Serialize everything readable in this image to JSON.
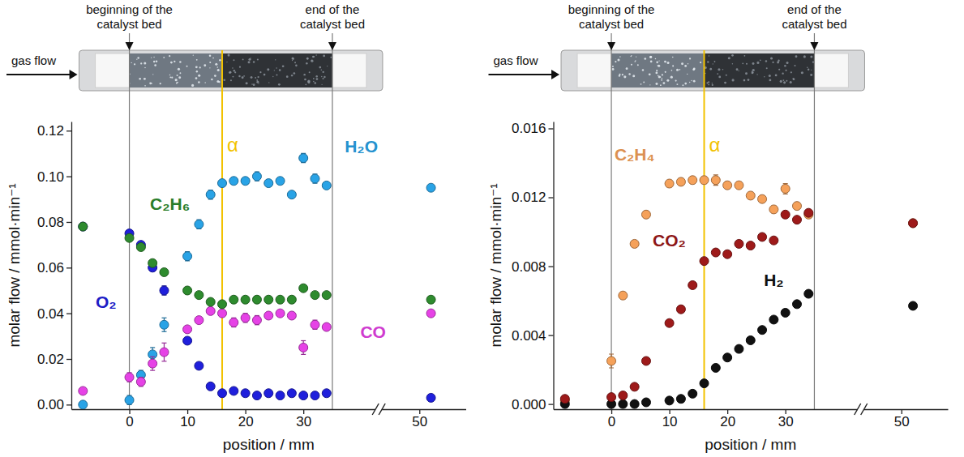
{
  "chart_data": [
    {
      "type": "scatter",
      "xlabel": "position / mm",
      "ylabel": "molar flow / mmol·min⁻¹",
      "x": [
        -8,
        0,
        2,
        4,
        6,
        10,
        12,
        14,
        16,
        18,
        20,
        22,
        24,
        26,
        28,
        30,
        32,
        34,
        52
      ],
      "xlim": [
        -10,
        58
      ],
      "xticks": [
        0,
        10,
        20,
        30,
        50
      ],
      "ylim": [
        -0.002,
        0.124
      ],
      "yticks": [
        {
          "value": 0,
          "label": "0.00"
        },
        0.02,
        0.04,
        0.06,
        0.08,
        {
          "value": 0.1,
          "label": "0.10"
        },
        0.12
      ],
      "grid": false,
      "marker": "circle",
      "annotations": [
        {
          "text": "gas flow"
        },
        {
          "text": "beginning of the catalyst bed",
          "x": 0
        },
        {
          "text": "end of the catalyst bed",
          "x": 35
        },
        {
          "text": "α",
          "x": 16
        }
      ],
      "series": [
        {
          "name": "O₂",
          "color": "#1f1fdc",
          "values": [
            0.078,
            0.075,
            0.07,
            0.06,
            0.05,
            0.028,
            0.017,
            0.008,
            0.005,
            0.006,
            0.005,
            0.004,
            0.005,
            0.004,
            0.005,
            0.004,
            0.004,
            0.005,
            0.003
          ],
          "errors": [
            0.001,
            0.001,
            0.001,
            0.001,
            0.002,
            0.001,
            0.001,
            0.001,
            0.001,
            0.001,
            0.001,
            0.001,
            0.001,
            0.001,
            0.001,
            0.001,
            0.001,
            0.001,
            0.001
          ]
        },
        {
          "name": "H₂O",
          "color": "#29a3e6",
          "values": [
            0,
            0.002,
            0.013,
            0.022,
            0.035,
            0.065,
            0.079,
            0.092,
            0.097,
            0.098,
            0.098,
            0.1,
            0.097,
            0.098,
            0.092,
            0.108,
            0.099,
            0.096,
            0.095
          ],
          "errors": [
            0.001,
            0.002,
            0.002,
            0.003,
            0.003,
            0.002,
            0.002,
            0.002,
            0.001,
            0.001,
            0.001,
            0.002,
            0.001,
            0.001,
            0.001,
            0.002,
            0.002,
            0.001,
            0.001
          ]
        },
        {
          "name": "CO",
          "color": "#e642e6",
          "values": [
            0.006,
            0.012,
            0.01,
            0.018,
            0.023,
            0.033,
            0.037,
            0.041,
            0.04,
            0.036,
            0.038,
            0.037,
            0.039,
            0.04,
            0.039,
            0.025,
            0.035,
            0.034,
            0.04
          ],
          "errors": [
            0.001,
            0.002,
            0.002,
            0.003,
            0.004,
            0.001,
            0.001,
            0.001,
            0.001,
            0.002,
            0.002,
            0.002,
            0.001,
            0.001,
            0.001,
            0.003,
            0.002,
            0.001,
            0.001
          ]
        },
        {
          "name": "C₂H₆",
          "color": "#2e8b2e",
          "values": [
            0.078,
            0.073,
            0.069,
            0.062,
            0.058,
            0.05,
            0.048,
            0.045,
            0.044,
            0.046,
            0.046,
            0.046,
            0.046,
            0.046,
            0.046,
            0.051,
            0.048,
            0.048,
            0.046
          ],
          "errors": [
            0.001,
            0.001,
            0.001,
            0.001,
            0.001,
            0.001,
            0.001,
            0.001,
            0.001,
            0.001,
            0.001,
            0.001,
            0.001,
            0.001,
            0.001,
            0.001,
            0.001,
            0.001,
            0.001
          ]
        }
      ]
    },
    {
      "type": "scatter",
      "xlabel": "position / mm",
      "ylabel": "molar flow / mmol·min⁻¹",
      "x": [
        -8,
        0,
        2,
        4,
        6,
        10,
        12,
        14,
        16,
        18,
        20,
        22,
        24,
        26,
        28,
        30,
        32,
        34,
        52
      ],
      "xlim": [
        -10,
        58
      ],
      "xticks": [
        0,
        10,
        20,
        30,
        50
      ],
      "ylim": [
        -0.0003,
        0.0164
      ],
      "yticks": [
        {
          "value": 0,
          "label": "0.000"
        },
        0.004,
        0.008,
        0.012,
        0.016
      ],
      "grid": false,
      "marker": "circle",
      "annotations": [
        {
          "text": "gas flow"
        },
        {
          "text": "beginning of the catalyst bed",
          "x": 0
        },
        {
          "text": "end of the catalyst bed",
          "x": 35
        },
        {
          "text": "α",
          "x": 16
        }
      ],
      "series": [
        {
          "name": "C₂H₄",
          "color": "#f5a15a",
          "values": [
            0.0002,
            0.0025,
            0.0063,
            0.0093,
            0.011,
            0.0128,
            0.0129,
            0.013,
            0.013,
            0.013,
            0.0127,
            0.0127,
            0.0121,
            0.0119,
            0.0113,
            0.0125,
            0.0115,
            0.011,
            0.0105
          ],
          "errors": [
            0.0001,
            0.0004,
            0.0002,
            0.0002,
            0.0002,
            0.0002,
            0.0002,
            0.0002,
            0.0002,
            0.0003,
            0.0002,
            0.0002,
            0.0002,
            0.0002,
            0.0002,
            0.0003,
            0.0002,
            0.0002,
            0.0002
          ]
        },
        {
          "name": "H₂",
          "color": "#111111",
          "values": [
            0,
            0,
            0,
            0,
            0.0001,
            0.0002,
            0.0003,
            0.0006,
            0.0012,
            0.0021,
            0.0027,
            0.0032,
            0.0037,
            0.0043,
            0.0049,
            0.0053,
            0.0058,
            0.0064,
            0.0057
          ],
          "errors": [
            0.0001,
            0.0001,
            0.0001,
            0.0001,
            0.0001,
            0.0001,
            0.0001,
            0.0001,
            0.0001,
            0.0001,
            0.0001,
            0.0001,
            0.0001,
            0.0001,
            0.0001,
            0.0001,
            0.0001,
            0.0001,
            0.0001
          ]
        },
        {
          "name": "CO₂",
          "color": "#9e1a1a",
          "values": [
            0.0003,
            0.0004,
            0.0005,
            0.001,
            0.0025,
            0.0047,
            0.0055,
            0.0069,
            0.0083,
            0.0088,
            0.0087,
            0.0093,
            0.0092,
            0.0097,
            0.0095,
            0.011,
            0.0107,
            0.0111,
            0.0105
          ],
          "errors": [
            0.0001,
            0.0001,
            0.0001,
            0.0001,
            0.0001,
            0.0001,
            0.0001,
            0.0001,
            0.0001,
            0.0001,
            0.0001,
            0.0001,
            0.0001,
            0.0001,
            0.0001,
            0.0001,
            0.0001,
            0.0001,
            0.0001
          ]
        }
      ]
    }
  ]
}
